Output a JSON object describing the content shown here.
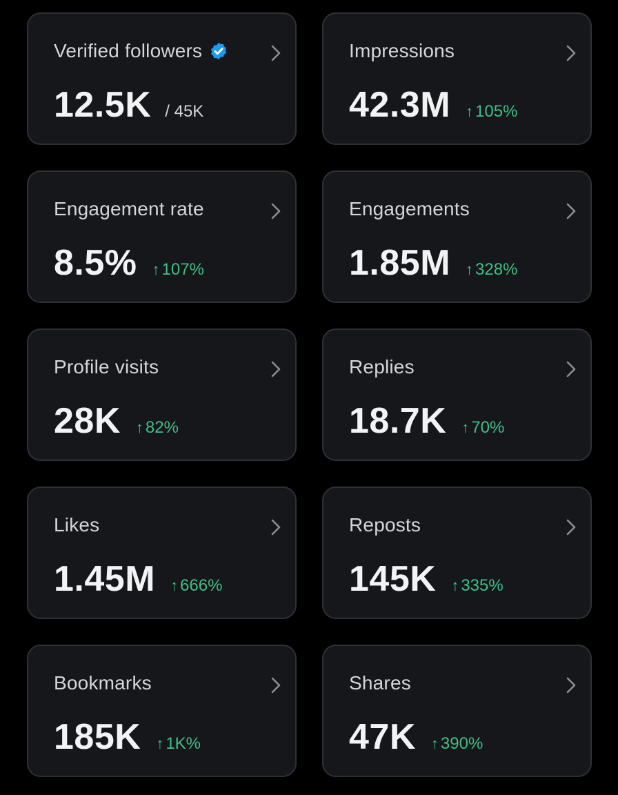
{
  "colors": {
    "background": "#000000",
    "card": "#16171b",
    "card_border": "#2f3136",
    "positive": "#3fbf86",
    "verified": "#1d9bf0"
  },
  "cards": [
    {
      "label": "Verified followers",
      "value": "12.5K",
      "total": "/ 45K",
      "icon": "verified-badge-icon"
    },
    {
      "label": "Impressions",
      "value": "42.3M",
      "change": "105%"
    },
    {
      "label": "Engagement rate",
      "value": "8.5%",
      "change": "107%"
    },
    {
      "label": "Engagements",
      "value": "1.85M",
      "change": "328%"
    },
    {
      "label": "Profile visits",
      "value": "28K",
      "change": "82%"
    },
    {
      "label": "Replies",
      "value": "18.7K",
      "change": "70%"
    },
    {
      "label": "Likes",
      "value": "1.45M",
      "change": "666%"
    },
    {
      "label": "Reposts",
      "value": "145K",
      "change": "335%"
    },
    {
      "label": "Bookmarks",
      "value": "185K",
      "change": "1K%"
    },
    {
      "label": "Shares",
      "value": "47K",
      "change": "390%"
    }
  ]
}
